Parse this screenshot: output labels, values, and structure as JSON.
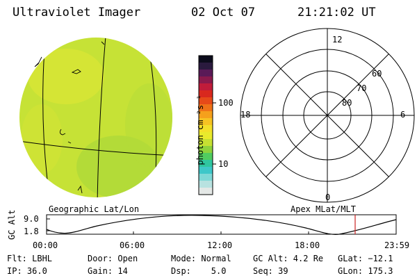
{
  "header": {
    "instrument": "Ultraviolet Imager",
    "date": "02 Oct 07",
    "time": "21:21:02 UT"
  },
  "colorbar": {
    "label": "photon cm⁻²s⁻¹",
    "tick_100": "100",
    "tick_10": "10",
    "colors": [
      "#e4e8e6",
      "#b8e2e0",
      "#7fd8d6",
      "#3ec7c9",
      "#2fc6a0",
      "#50cc60",
      "#8ed23c",
      "#c6e032",
      "#e9ea2c",
      "#f3e02a",
      "#f6c323",
      "#f5a01c",
      "#ef7218",
      "#e64a19",
      "#d9281e",
      "#c01c3a",
      "#8a1a4c",
      "#5a1a57",
      "#2a1a3e",
      "#0c0c1c"
    ]
  },
  "globe": {
    "label": "Geographic Lat/Lon",
    "fill_color": "#c6e236"
  },
  "polar": {
    "label": "Apex MLat/MLT",
    "mlt_12": "12",
    "mlt_18": "18",
    "mlt_6": "6",
    "mlt_0": "0",
    "lat_60": "60",
    "lat_70": "70",
    "lat_80": "80"
  },
  "orbit": {
    "ylabel": "GC Alt",
    "y_top": "9.0",
    "y_bottom": "1.8",
    "x_ticks": [
      "00:00",
      "06:00",
      "12:00",
      "18:00",
      "23:59"
    ],
    "current_time_marker_color": "#cc2222"
  },
  "status": {
    "flt": "Flt: LBHL",
    "ip": "IP: 36.0",
    "door": "Door: Open",
    "gain": "Gain: 14",
    "mode": "Mode: Normal",
    "dsp": "Dsp:    5.0",
    "gcalt": "GC Alt: 4.2 Re",
    "seq": "Seq: 39",
    "glat": "GLat: −12.1",
    "glon": "GLon: 175.3"
  }
}
